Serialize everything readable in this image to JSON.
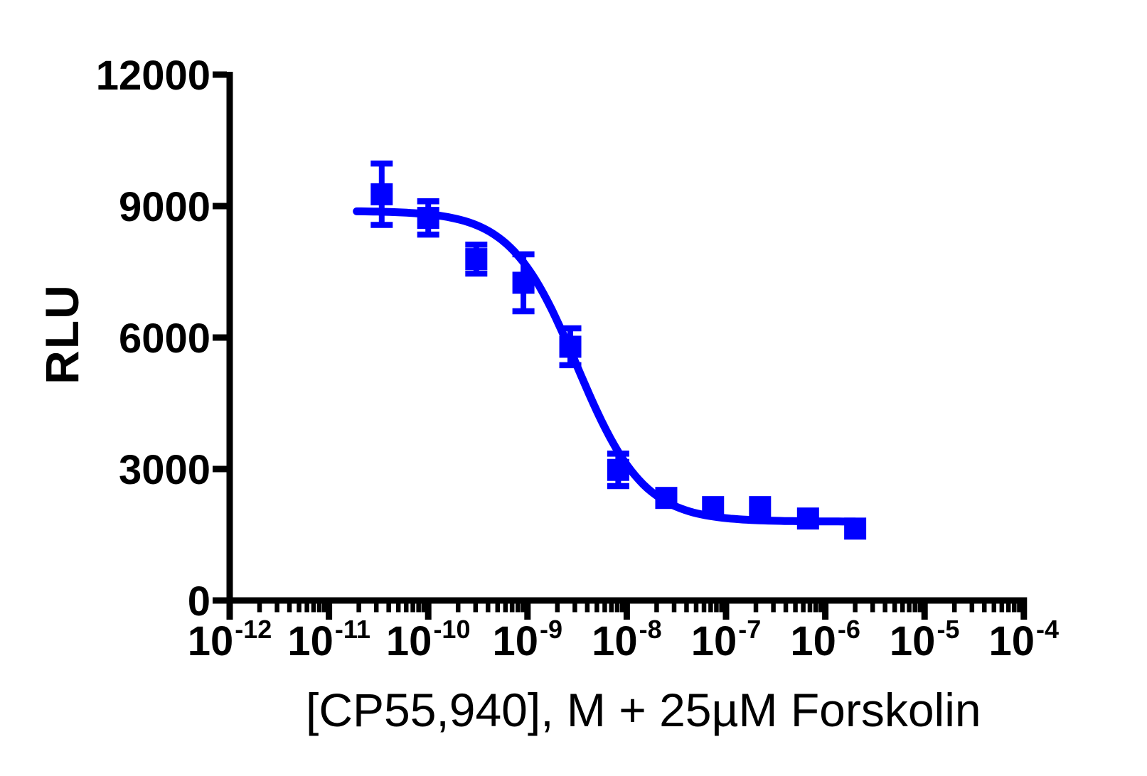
{
  "figure": {
    "background_color": "#ffffff",
    "axis_color": "#000000",
    "accent_blue": "#0000ff"
  },
  "y_axis": {
    "title": "RLU",
    "range": [
      0,
      12000
    ],
    "ticks": [
      0,
      3000,
      6000,
      9000,
      12000
    ],
    "tick_labels": [
      "0",
      "3000",
      "6000",
      "9000",
      "12000"
    ]
  },
  "x_axis": {
    "title": "[CP55,940], M + 25µM Forskolin",
    "scale": "log10",
    "tick_base": "10",
    "decade_exponents": [
      -12,
      -11,
      -10,
      -9,
      -8,
      -7,
      -6,
      -5,
      -4
    ],
    "range_log10": [
      -12,
      -4
    ]
  },
  "chart_data": {
    "type": "scatter",
    "title": "",
    "xlabel": "[CP55,940], M + 25µM Forskolin",
    "ylabel": "RLU",
    "x_scale": "log10",
    "xlim_log10": [
      -12,
      -4
    ],
    "ylim": [
      0,
      12000
    ],
    "grid": false,
    "legend": false,
    "series": [
      {
        "name": "CP55,940 + 25µM Forskolin",
        "marker": "square",
        "marker_color": "#0000ff",
        "error_bars": "sem",
        "points": [
          {
            "conc_M": 3.4e-11,
            "rlu": 9270,
            "sem": 700
          },
          {
            "conc_M": 1e-10,
            "rlu": 8730,
            "sem": 380
          },
          {
            "conc_M": 3.05e-10,
            "rlu": 7790,
            "sem": 330
          },
          {
            "conc_M": 9.1e-10,
            "rlu": 7250,
            "sem": 650
          },
          {
            "conc_M": 2.7e-09,
            "rlu": 5790,
            "sem": 420
          },
          {
            "conc_M": 8.2e-09,
            "rlu": 2980,
            "sem": 370
          },
          {
            "conc_M": 2.5e-08,
            "rlu": 2340,
            "sem": null
          },
          {
            "conc_M": 7.4e-08,
            "rlu": 2130,
            "sem": null
          },
          {
            "conc_M": 2.2e-07,
            "rlu": 2130,
            "sem": null
          },
          {
            "conc_M": 6.7e-07,
            "rlu": 1870,
            "sem": null
          },
          {
            "conc_M": 2e-06,
            "rlu": 1640,
            "sem": null
          }
        ],
        "fit_curve": {
          "model": "sigmoidal dose-response (inhibition)",
          "top_rlu": 8890,
          "bottom_rlu": 1800,
          "log_ec50": -8.5,
          "ec50_M": 3.2e-09,
          "hill_slope": 1.3,
          "curve_log10_range": [
            -10.72,
            -5.7
          ]
        }
      }
    ]
  }
}
